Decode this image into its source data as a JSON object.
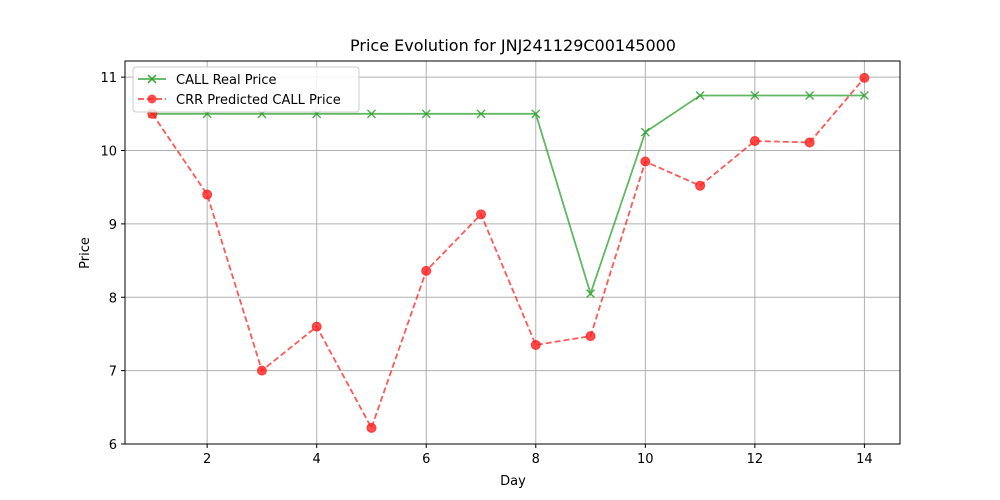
{
  "chart_data": {
    "type": "line",
    "title": "Price Evolution for JNJ241129C00145000",
    "xlabel": "Day",
    "ylabel": "Price",
    "xlim": [
      0.5,
      14.65
    ],
    "ylim": [
      6.0,
      11.22
    ],
    "xticks": [
      2,
      4,
      6,
      8,
      10,
      12,
      14
    ],
    "yticks": [
      6,
      7,
      8,
      9,
      10,
      11
    ],
    "grid": true,
    "legend_position": "top-left",
    "x": [
      1,
      2,
      3,
      4,
      5,
      6,
      7,
      8,
      9,
      10,
      11,
      12,
      13,
      14
    ],
    "series": [
      {
        "name": "CALL Real Price",
        "color": "#2ca02c",
        "line_style": "solid",
        "marker": "x",
        "values": [
          10.5,
          10.5,
          10.5,
          10.5,
          10.5,
          10.5,
          10.5,
          10.5,
          8.05,
          10.25,
          10.75,
          10.75,
          10.75,
          10.75
        ]
      },
      {
        "name": "CRR Predicted CALL Price",
        "color": "#ff2020",
        "line_style": "dashed",
        "marker": "circle",
        "values": [
          10.5,
          9.4,
          7.0,
          7.6,
          6.22,
          8.36,
          9.13,
          7.35,
          7.47,
          9.85,
          9.52,
          10.13,
          10.11,
          10.99
        ]
      }
    ]
  }
}
